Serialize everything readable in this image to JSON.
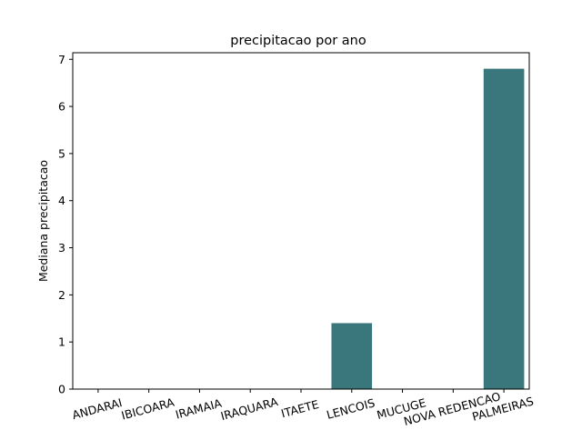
{
  "chart_data": {
    "type": "bar",
    "title": "precipitacao por ano",
    "xlabel": "",
    "ylabel": "Mediana precipitacao",
    "categories": [
      "ANDARAI",
      "IBICOARA",
      "IRAMAIA",
      "IRAQUARA",
      "ITAETE",
      "LENCOIS",
      "MUCUGE",
      "NOVA REDENCAO",
      "PALMEIRAS"
    ],
    "values": [
      0,
      0,
      0,
      0,
      0,
      1.4,
      0,
      0,
      6.8
    ],
    "ylim": [
      0,
      7.14
    ],
    "yticks": [
      0,
      1,
      2,
      3,
      4,
      5,
      6,
      7
    ],
    "bar_color": "#39777c",
    "grid": false,
    "legend": "none"
  }
}
